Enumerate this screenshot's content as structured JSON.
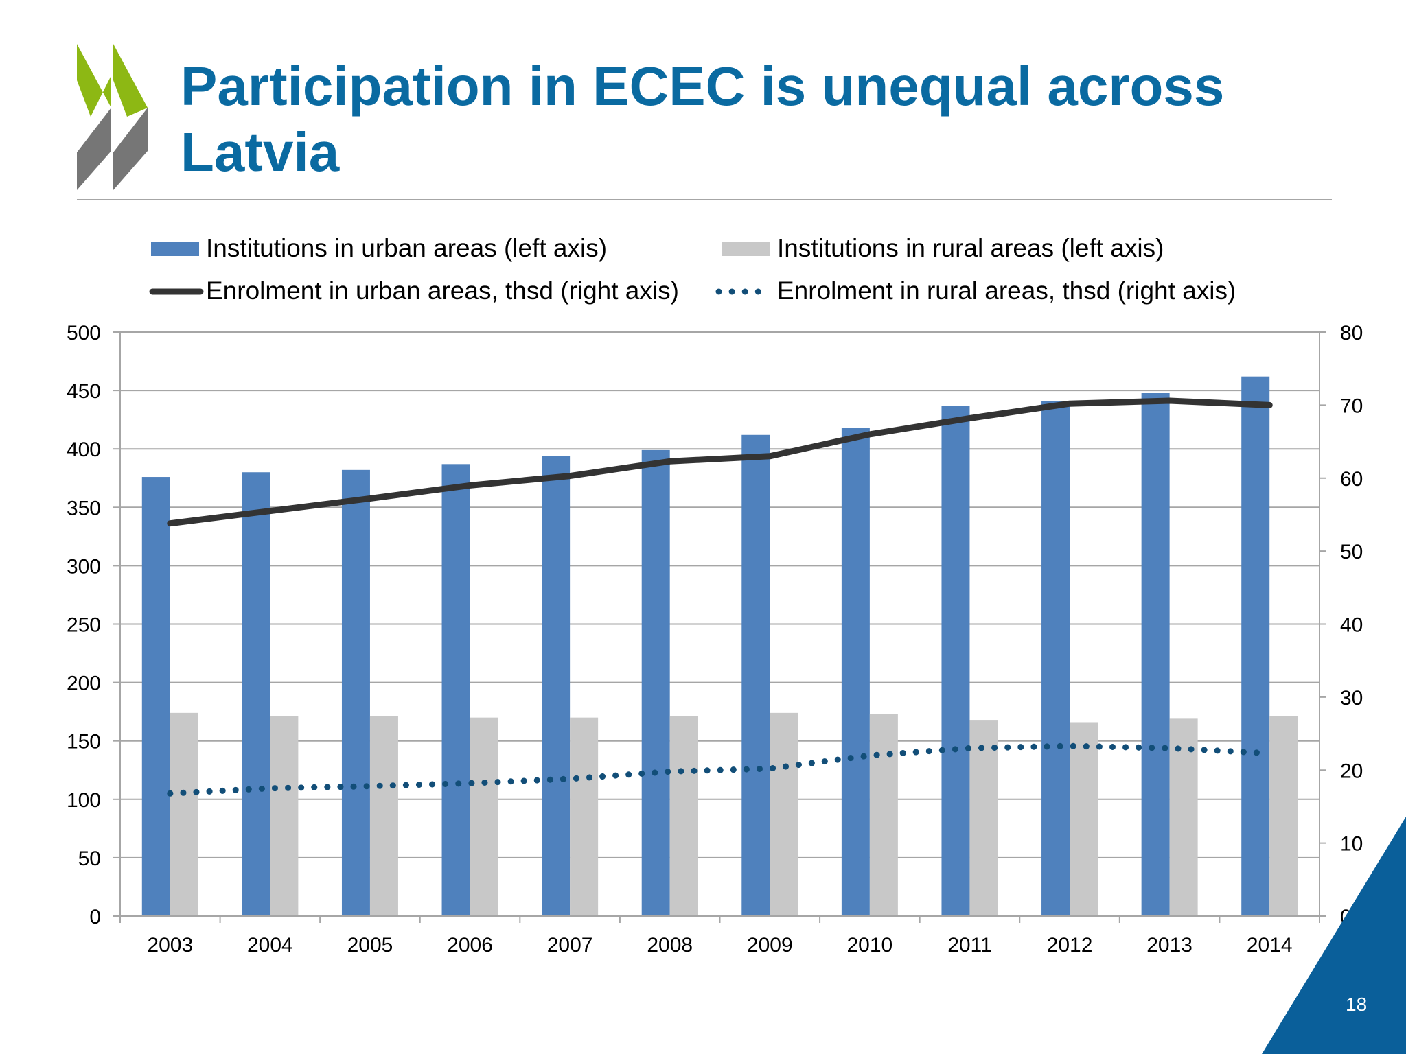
{
  "slide": {
    "title": "Participation in ECEC is unequal across Latvia",
    "page_number": "18",
    "colors": {
      "title": "#0a6aa1",
      "logo_green": "#8db814",
      "logo_gray": "#767676",
      "corner_blue": "#0a5f9a"
    }
  },
  "chart_data": {
    "type": "bar",
    "categories": [
      "2003",
      "2004",
      "2005",
      "2006",
      "2007",
      "2008",
      "2009",
      "2010",
      "2011",
      "2012",
      "2013",
      "2014"
    ],
    "series": [
      {
        "name": "Institutions in urban areas (left axis)",
        "type": "bar",
        "axis": "left",
        "color": "#4f81bd",
        "values": [
          376,
          380,
          382,
          387,
          394,
          399,
          412,
          418,
          437,
          441,
          448,
          462
        ]
      },
      {
        "name": "Institutions in rural areas (left axis)",
        "type": "bar",
        "axis": "left",
        "color": "#c8c8c8",
        "values": [
          174,
          171,
          171,
          170,
          170,
          171,
          174,
          173,
          168,
          166,
          169,
          171
        ]
      },
      {
        "name": "Enrolment in urban areas, thsd (right axis)",
        "type": "line",
        "style": "solid",
        "axis": "right",
        "color": "#333333",
        "values": [
          53.8,
          55.5,
          57.2,
          59.0,
          60.3,
          62.3,
          63.0,
          66.0,
          68.2,
          70.2,
          70.6,
          70.0
        ]
      },
      {
        "name": "Enrolment in rural areas, thsd (right axis)",
        "type": "line",
        "style": "dotted",
        "axis": "right",
        "color": "#124e78",
        "values": [
          16.8,
          17.5,
          17.8,
          18.2,
          18.8,
          19.8,
          20.2,
          22.0,
          23.0,
          23.3,
          23.0,
          22.3
        ]
      }
    ],
    "y_left": {
      "min": 0,
      "max": 500,
      "step": 50,
      "ticks": [
        "0",
        "50",
        "100",
        "150",
        "200",
        "250",
        "300",
        "350",
        "400",
        "450",
        "500"
      ]
    },
    "y_right": {
      "min": 0,
      "max": 80,
      "step": 10,
      "ticks": [
        "0",
        "10",
        "20",
        "30",
        "40",
        "50",
        "60",
        "70",
        "80"
      ]
    },
    "grid": true,
    "legend_position": "top"
  }
}
